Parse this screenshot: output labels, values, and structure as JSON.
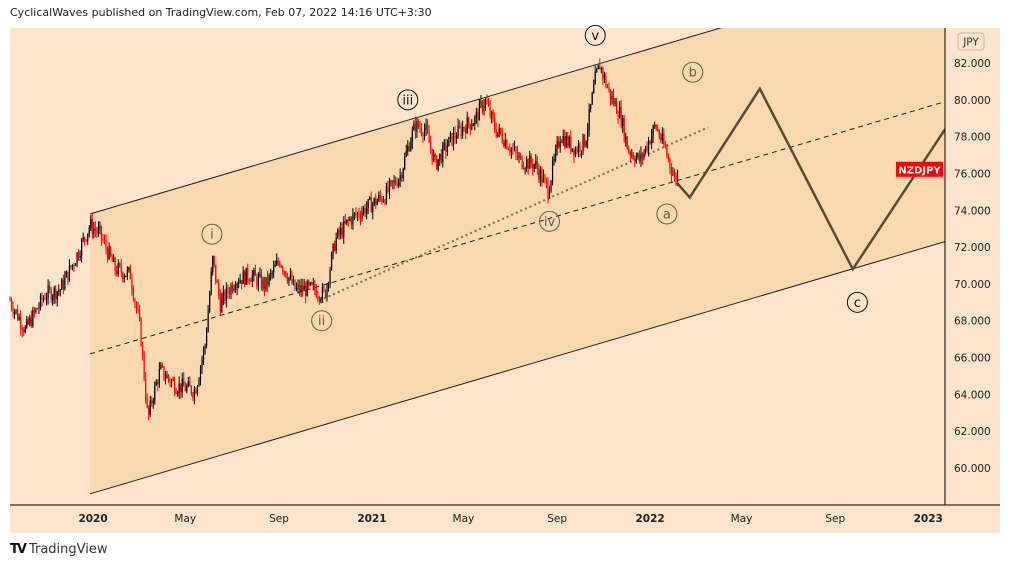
{
  "header": "CyclicalWaves published on TradingView.com, Feb 07, 2022 14:16 UTC+3:30",
  "footer_brand": "TradingView",
  "chart_data": {
    "type": "candlestick",
    "symbol": "NZDJPY",
    "currency": "JPY",
    "colors": {
      "background": "#fce5cc",
      "channel_fill": "#fbd9b0",
      "up": "#000000",
      "down": "#ff0000",
      "badge": "#ff0000",
      "projection": "#5a4a33"
    },
    "ylim": [
      58.5,
      84.5
    ],
    "y_ticks": [
      "82.000",
      "80.000",
      "78.000",
      "76.000",
      "74.000",
      "72.000",
      "70.000",
      "68.000",
      "66.000",
      "64.000",
      "62.000",
      "60.000"
    ],
    "x_ticks": [
      {
        "label": "2020",
        "date": "2020-01-01",
        "bold": true
      },
      {
        "label": "May",
        "date": "2020-05-01"
      },
      {
        "label": "Sep",
        "date": "2020-09-01"
      },
      {
        "label": "2021",
        "date": "2021-01-01",
        "bold": true
      },
      {
        "label": "May",
        "date": "2021-05-01"
      },
      {
        "label": "Sep",
        "date": "2021-09-01"
      },
      {
        "label": "2022",
        "date": "2022-01-01",
        "bold": true
      },
      {
        "label": "May",
        "date": "2022-05-01"
      },
      {
        "label": "Sep",
        "date": "2022-09-01"
      },
      {
        "label": "2023",
        "date": "2023-01-01",
        "bold": true
      }
    ],
    "xlim": [
      "2019-09-14",
      "2023-01-23"
    ],
    "price_path": [
      [
        "2019-09-14",
        69.1
      ],
      [
        "2019-10-04",
        67.5
      ],
      [
        "2019-10-30",
        69.4
      ],
      [
        "2019-11-19",
        69.7
      ],
      [
        "2019-12-08",
        71.3
      ],
      [
        "2019-12-28",
        73.2
      ],
      [
        "2020-01-10",
        72.7
      ],
      [
        "2020-01-30",
        70.8
      ],
      [
        "2020-02-19",
        70.5
      ],
      [
        "2020-03-03",
        67.5
      ],
      [
        "2020-03-13",
        62.6
      ],
      [
        "2020-03-18",
        63.7
      ],
      [
        "2020-03-29",
        65.3
      ],
      [
        "2020-04-18",
        64.5
      ],
      [
        "2020-05-14",
        64.2
      ],
      [
        "2020-05-27",
        66.7
      ],
      [
        "2020-06-06",
        71.3
      ],
      [
        "2020-06-16",
        68.9
      ],
      [
        "2020-07-05",
        70.2
      ],
      [
        "2020-07-25",
        70.5
      ],
      [
        "2020-08-14",
        69.9
      ],
      [
        "2020-09-02",
        71.3
      ],
      [
        "2020-09-22",
        69.7
      ],
      [
        "2020-10-18",
        69.7
      ],
      [
        "2020-10-31",
        69.4
      ],
      [
        "2020-11-14",
        72.4
      ],
      [
        "2020-12-03",
        73.5
      ],
      [
        "2020-12-30",
        74.3
      ],
      [
        "2021-01-18",
        74.8
      ],
      [
        "2021-02-07",
        75.9
      ],
      [
        "2021-02-20",
        77.8
      ],
      [
        "2021-02-27",
        78.6
      ],
      [
        "2021-03-12",
        78.4
      ],
      [
        "2021-03-25",
        76.5
      ],
      [
        "2021-04-14",
        77.8
      ],
      [
        "2021-05-03",
        78.6
      ],
      [
        "2021-05-16",
        78.9
      ],
      [
        "2021-05-29",
        80.0
      ],
      [
        "2021-06-12",
        78.4
      ],
      [
        "2021-06-25",
        77.8
      ],
      [
        "2021-07-14",
        76.7
      ],
      [
        "2021-08-03",
        76.5
      ],
      [
        "2021-08-20",
        75.1
      ],
      [
        "2021-09-05",
        78.1
      ],
      [
        "2021-09-25",
        77.3
      ],
      [
        "2021-10-08",
        77.8
      ],
      [
        "2021-10-21",
        81.1
      ],
      [
        "2021-10-27",
        81.9
      ],
      [
        "2021-11-09",
        80.3
      ],
      [
        "2021-11-23",
        79.2
      ],
      [
        "2021-12-03",
        77.3
      ],
      [
        "2021-12-19",
        76.7
      ],
      [
        "2022-01-08",
        78.6
      ],
      [
        "2022-01-21",
        77.3
      ],
      [
        "2022-02-03",
        75.6
      ],
      [
        "2022-02-07",
        76.2
      ]
    ],
    "last_price_label": "NZDJPY",
    "last_price": 76.2,
    "channel": {
      "upper": [
        [
          "2019-12-28",
          73.8
        ],
        [
          "2023-01-23",
          87.5
        ]
      ],
      "lower": [
        [
          "2019-12-28",
          58.6
        ],
        [
          "2023-01-23",
          72.3
        ]
      ],
      "middle_dashed": [
        [
          "2019-12-28",
          66.2
        ],
        [
          "2023-01-23",
          79.9
        ]
      ]
    },
    "dotted_line": [
      [
        "2020-10-24",
        69.1
      ],
      [
        "2022-03-18",
        78.5
      ]
    ],
    "projection": [
      [
        "2022-02-05",
        75.5
      ],
      [
        "2022-02-22",
        74.7
      ],
      [
        "2022-05-25",
        80.6
      ],
      [
        "2022-09-24",
        70.8
      ],
      [
        "2023-01-23",
        78.4
      ]
    ],
    "wave_labels": [
      {
        "text": "v",
        "date": "2021-10-21",
        "price": 83.5,
        "style": "dark"
      },
      {
        "text": "iii",
        "date": "2021-02-17",
        "price": 80.0,
        "style": "dark"
      },
      {
        "text": "b",
        "date": "2022-02-26",
        "price": 81.5,
        "style": "light"
      },
      {
        "text": "i",
        "date": "2020-06-05",
        "price": 72.7,
        "style": "light"
      },
      {
        "text": "ii",
        "date": "2020-10-27",
        "price": 68.0,
        "style": "light"
      },
      {
        "text": "iv",
        "date": "2021-08-22",
        "price": 73.4,
        "style": "light"
      },
      {
        "text": "a",
        "date": "2022-01-23",
        "price": 73.8,
        "style": "light"
      },
      {
        "text": "c",
        "date": "2022-09-30",
        "price": 69.0,
        "style": "dark"
      }
    ]
  }
}
